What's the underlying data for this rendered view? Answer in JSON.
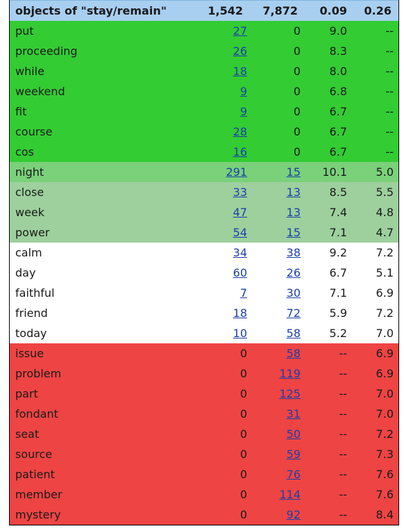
{
  "header": {
    "label": "objects of \"stay/remain\"",
    "c1": "1,542",
    "c2": "7,872",
    "c3": "0.09",
    "c4": "0.26"
  },
  "colors": {
    "header": "#a8cff0",
    "strong_green": "#33cc33",
    "medium_green": "#7ad17a",
    "light_green": "#9dd09d",
    "neutral": "#ffffff",
    "red": "#ee4444",
    "link": "#1a3fa8"
  },
  "rows": [
    {
      "word": "put",
      "c1": "27",
      "c2": "0",
      "c3": "9.0",
      "c4": "--",
      "band": "g1",
      "link1": true,
      "link2": false
    },
    {
      "word": "proceeding",
      "c1": "26",
      "c2": "0",
      "c3": "8.3",
      "c4": "--",
      "band": "g1",
      "link1": true,
      "link2": false
    },
    {
      "word": "while",
      "c1": "18",
      "c2": "0",
      "c3": "8.0",
      "c4": "--",
      "band": "g1",
      "link1": true,
      "link2": false
    },
    {
      "word": "weekend",
      "c1": "9",
      "c2": "0",
      "c3": "6.8",
      "c4": "--",
      "band": "g1",
      "link1": true,
      "link2": false
    },
    {
      "word": "fit",
      "c1": "9",
      "c2": "0",
      "c3": "6.7",
      "c4": "--",
      "band": "g1",
      "link1": true,
      "link2": false
    },
    {
      "word": "course",
      "c1": "28",
      "c2": "0",
      "c3": "6.7",
      "c4": "--",
      "band": "g1",
      "link1": true,
      "link2": false
    },
    {
      "word": "cos",
      "c1": "16",
      "c2": "0",
      "c3": "6.7",
      "c4": "--",
      "band": "g1",
      "link1": true,
      "link2": false
    },
    {
      "word": "night",
      "c1": "291",
      "c2": "15",
      "c3": "10.1",
      "c4": "5.0",
      "band": "g2",
      "link1": true,
      "link2": true
    },
    {
      "word": "close",
      "c1": "33",
      "c2": "13",
      "c3": "8.5",
      "c4": "5.5",
      "band": "g3",
      "link1": true,
      "link2": true
    },
    {
      "word": "week",
      "c1": "47",
      "c2": "13",
      "c3": "7.4",
      "c4": "4.8",
      "band": "g3",
      "link1": true,
      "link2": true
    },
    {
      "word": "power",
      "c1": "54",
      "c2": "15",
      "c3": "7.1",
      "c4": "4.7",
      "band": "g3",
      "link1": true,
      "link2": true
    },
    {
      "word": "calm",
      "c1": "34",
      "c2": "38",
      "c3": "9.2",
      "c4": "7.2",
      "band": "w",
      "link1": true,
      "link2": true
    },
    {
      "word": "day",
      "c1": "60",
      "c2": "26",
      "c3": "6.7",
      "c4": "5.1",
      "band": "w",
      "link1": true,
      "link2": true
    },
    {
      "word": "faithful",
      "c1": "7",
      "c2": "30",
      "c3": "7.1",
      "c4": "6.9",
      "band": "w",
      "link1": true,
      "link2": true
    },
    {
      "word": "friend",
      "c1": "18",
      "c2": "72",
      "c3": "5.9",
      "c4": "7.2",
      "band": "w",
      "link1": true,
      "link2": true
    },
    {
      "word": "today",
      "c1": "10",
      "c2": "58",
      "c3": "5.2",
      "c4": "7.0",
      "band": "w",
      "link1": true,
      "link2": true
    },
    {
      "word": "issue",
      "c1": "0",
      "c2": "58",
      "c3": "--",
      "c4": "6.9",
      "band": "r",
      "link1": false,
      "link2": true
    },
    {
      "word": "problem",
      "c1": "0",
      "c2": "119",
      "c3": "--",
      "c4": "6.9",
      "band": "r",
      "link1": false,
      "link2": true
    },
    {
      "word": "part",
      "c1": "0",
      "c2": "125",
      "c3": "--",
      "c4": "7.0",
      "band": "r",
      "link1": false,
      "link2": true
    },
    {
      "word": "fondant",
      "c1": "0",
      "c2": "31",
      "c3": "--",
      "c4": "7.0",
      "band": "r",
      "link1": false,
      "link2": true
    },
    {
      "word": "seat",
      "c1": "0",
      "c2": "50",
      "c3": "--",
      "c4": "7.2",
      "band": "r",
      "link1": false,
      "link2": true
    },
    {
      "word": "source",
      "c1": "0",
      "c2": "59",
      "c3": "--",
      "c4": "7.3",
      "band": "r",
      "link1": false,
      "link2": true
    },
    {
      "word": "patient",
      "c1": "0",
      "c2": "76",
      "c3": "--",
      "c4": "7.6",
      "band": "r",
      "link1": false,
      "link2": true
    },
    {
      "word": "member",
      "c1": "0",
      "c2": "114",
      "c3": "--",
      "c4": "7.6",
      "band": "r",
      "link1": false,
      "link2": true
    },
    {
      "word": "mystery",
      "c1": "0",
      "c2": "92",
      "c3": "--",
      "c4": "8.4",
      "band": "r",
      "link1": false,
      "link2": true
    }
  ]
}
